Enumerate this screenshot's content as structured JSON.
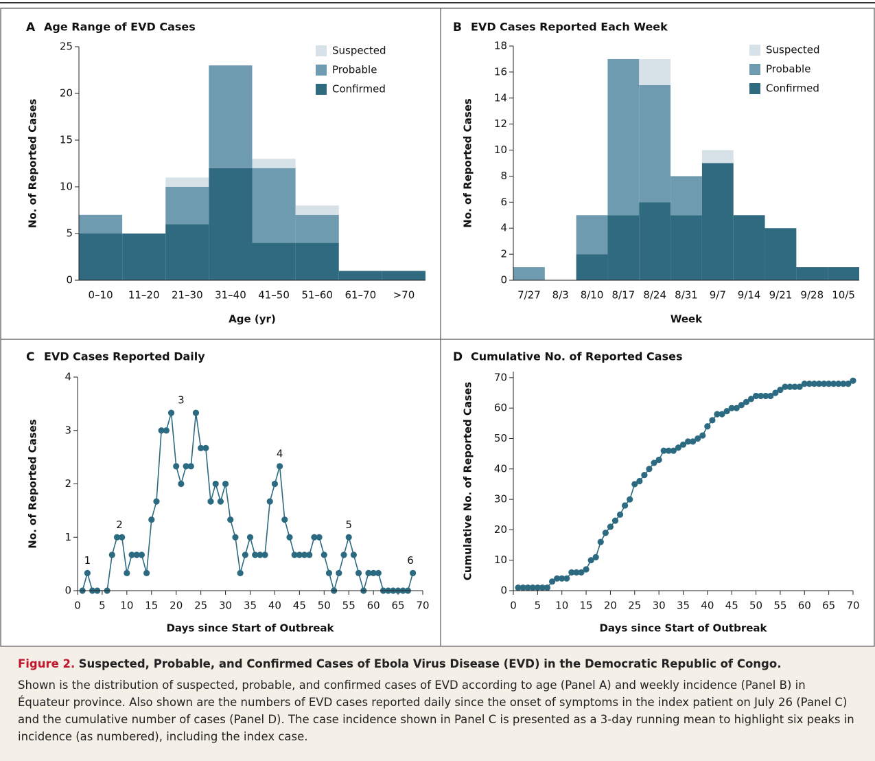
{
  "chart_data": [
    {
      "type": "bar",
      "panel": "A",
      "title": "Age Range of EVD Cases",
      "x_label": "Age (yr)",
      "y_label": "No. of Reported Cases",
      "stacked": true,
      "legend": "top-right",
      "categories": [
        "0–10",
        "11–20",
        "21–30",
        "31–40",
        "41–50",
        "51–60",
        "61–70",
        ">70"
      ],
      "series": [
        {
          "name": "Confirmed",
          "color": "#2f6a80",
          "values": [
            5,
            5,
            6,
            12,
            4,
            4,
            1,
            1
          ]
        },
        {
          "name": "Probable",
          "color": "#6f9bb0",
          "values": [
            2,
            0,
            4,
            11,
            8,
            3,
            0,
            0
          ]
        },
        {
          "name": "Suspected",
          "color": "#d7e1e8",
          "values": [
            0,
            0,
            1,
            0,
            1,
            1,
            0,
            0
          ]
        }
      ],
      "ylim": [
        0,
        25
      ],
      "yticks": [
        0,
        5,
        10,
        15,
        20,
        25
      ]
    },
    {
      "type": "bar",
      "panel": "B",
      "title": "EVD Cases Reported Each Week",
      "x_label": "Week",
      "y_label": "No. of Reported Cases",
      "stacked": true,
      "legend": "top-right",
      "categories": [
        "7/27",
        "8/3",
        "8/10",
        "8/17",
        "8/24",
        "8/31",
        "9/7",
        "9/14",
        "9/21",
        "9/28",
        "10/5"
      ],
      "series": [
        {
          "name": "Confirmed",
          "color": "#2f6a80",
          "values": [
            0,
            0,
            2,
            5,
            6,
            5,
            9,
            5,
            4,
            1,
            1
          ]
        },
        {
          "name": "Probable",
          "color": "#6f9bb0",
          "values": [
            1,
            0,
            3,
            12,
            9,
            3,
            0,
            0,
            0,
            0,
            0
          ]
        },
        {
          "name": "Suspected",
          "color": "#d7e1e8",
          "values": [
            0,
            0,
            0,
            0,
            2,
            0,
            1,
            0,
            0,
            0,
            0
          ]
        }
      ],
      "ylim": [
        0,
        18
      ],
      "yticks": [
        0,
        2,
        4,
        6,
        8,
        10,
        12,
        14,
        16,
        18
      ]
    },
    {
      "type": "line",
      "panel": "C",
      "title": "EVD Cases Reported Daily",
      "x_label": "Days since Start of Outbreak",
      "y_label": "No. of Reported Cases",
      "color": "#2b6a80",
      "x": [
        1,
        2,
        3,
        4,
        6,
        7,
        8,
        9,
        10,
        11,
        12,
        13,
        14,
        15,
        16,
        17,
        18,
        19,
        20,
        21,
        22,
        23,
        24,
        25,
        26,
        27,
        28,
        29,
        30,
        31,
        32,
        33,
        34,
        35,
        36,
        37,
        38,
        39,
        40,
        41,
        42,
        43,
        44,
        45,
        46,
        47,
        48,
        49,
        50,
        51,
        52,
        53,
        54,
        55,
        56,
        57,
        58,
        59,
        60,
        61,
        62,
        63,
        64,
        65,
        66,
        67,
        68
      ],
      "values": [
        0,
        0.33,
        0,
        0,
        0,
        0.67,
        1,
        1,
        0.33,
        0.67,
        0.67,
        0.67,
        0.33,
        1.33,
        1.67,
        3,
        3,
        3.33,
        2.33,
        2,
        2.33,
        2.33,
        3.33,
        2.67,
        2.67,
        1.67,
        2,
        1.67,
        2,
        1.33,
        1,
        0.33,
        0.67,
        1,
        0.67,
        0.67,
        0.67,
        1.67,
        2,
        2.33,
        1.33,
        1,
        0.67,
        0.67,
        0.67,
        0.67,
        1,
        1,
        0.67,
        0.33,
        0,
        0.33,
        0.67,
        1,
        0.67,
        0.33,
        0,
        0.33,
        0.33,
        0.33,
        0,
        0,
        0,
        0,
        0,
        0,
        0.33
      ],
      "annotations": [
        {
          "text": "1",
          "x": 2,
          "y": 0.33
        },
        {
          "text": "2",
          "x": 8.5,
          "y": 1
        },
        {
          "text": "3",
          "x": 21,
          "y": 3.33
        },
        {
          "text": "4",
          "x": 41,
          "y": 2.33
        },
        {
          "text": "5",
          "x": 55,
          "y": 1
        },
        {
          "text": "6",
          "x": 67.5,
          "y": 0.33
        }
      ],
      "xlim": [
        0,
        70
      ],
      "xticks": [
        0,
        5,
        10,
        15,
        20,
        25,
        30,
        35,
        40,
        45,
        50,
        55,
        60,
        65,
        70
      ],
      "ylim": [
        0,
        4
      ],
      "yticks": [
        0,
        1,
        2,
        3,
        4
      ]
    },
    {
      "type": "line",
      "panel": "D",
      "title": "Cumulative No. of Reported Cases",
      "x_label": "Days since Start of Outbreak",
      "y_label": "Cumulative No. of Reported Cases",
      "color": "#2b6a80",
      "x": [
        1,
        2,
        3,
        4,
        5,
        6,
        7,
        8,
        9,
        10,
        11,
        12,
        13,
        14,
        15,
        16,
        17,
        18,
        19,
        20,
        21,
        22,
        23,
        24,
        25,
        26,
        27,
        28,
        29,
        30,
        31,
        32,
        33,
        34,
        35,
        36,
        37,
        38,
        39,
        40,
        41,
        42,
        43,
        44,
        45,
        46,
        47,
        48,
        49,
        50,
        51,
        52,
        53,
        54,
        55,
        56,
        57,
        58,
        59,
        60,
        61,
        62,
        63,
        64,
        65,
        66,
        67,
        68,
        69,
        70
      ],
      "values": [
        1,
        1,
        1,
        1,
        1,
        1,
        1,
        3,
        4,
        4,
        4,
        6,
        6,
        6,
        7,
        10,
        11,
        16,
        19,
        21,
        23,
        25,
        28,
        30,
        35,
        36,
        38,
        40,
        42,
        43,
        46,
        46,
        46,
        47,
        48,
        49,
        49,
        50,
        51,
        54,
        56,
        58,
        58,
        59,
        60,
        60,
        61,
        62,
        63,
        64,
        64,
        64,
        64,
        65,
        66,
        67,
        67,
        67,
        67,
        68,
        68,
        68,
        68,
        68,
        68,
        68,
        68,
        68,
        68,
        69
      ],
      "xlim": [
        0,
        70
      ],
      "xticks": [
        0,
        5,
        10,
        15,
        20,
        25,
        30,
        35,
        40,
        45,
        50,
        55,
        60,
        65,
        70
      ],
      "ylim": [
        0,
        72
      ],
      "yticks": [
        0,
        10,
        20,
        30,
        40,
        50,
        60,
        70
      ]
    }
  ],
  "caption": {
    "label": "Figure 2.",
    "title": "Suspected, Probable, and Confirmed Cases of Ebola Virus Disease (EVD) in the Democratic Republic of Congo.",
    "text": "Shown is the distribution of suspected, probable, and confirmed cases of EVD according to age (Panel A) and weekly incidence (Panel B) in Équateur province. Also shown are the numbers of EVD cases reported daily since the onset of symptoms in the index patient on July 26 (Panel C) and the cumulative number of cases (Panel D). The case incidence shown in Panel C is presented as a 3-day running mean to highlight six peaks in incidence (as numbered), including the index case."
  }
}
